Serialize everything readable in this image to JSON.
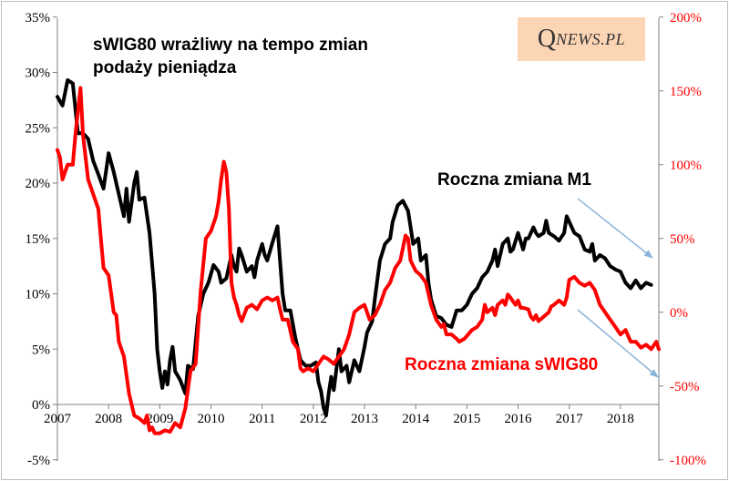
{
  "logo": {
    "initial": "Q",
    "rest": "NEWS.PL"
  },
  "chart_data": {
    "type": "line",
    "title": "sWIG80 wrażliwy na tempo zmian podaży pieniądza",
    "title_lines": [
      "sWIG80 wrażliwy na tempo zmian",
      "podaży pieniądza"
    ],
    "x_ticks": [
      "2007",
      "2008",
      "2009",
      "2010",
      "2011",
      "2012",
      "2013",
      "2014",
      "2015",
      "2016",
      "2017",
      "2018"
    ],
    "x_range": [
      2007.0,
      2018.75
    ],
    "y_left": {
      "range": [
        -5,
        35
      ],
      "ticks": [
        -5,
        0,
        5,
        10,
        15,
        20,
        25,
        30,
        35
      ],
      "tick_labels": [
        "-5%",
        "0%",
        "5%",
        "10%",
        "15%",
        "20%",
        "25%",
        "30%",
        "35%"
      ]
    },
    "y_right": {
      "range": [
        -100,
        200
      ],
      "ticks": [
        -100,
        -50,
        0,
        50,
        100,
        150,
        200
      ],
      "tick_labels": [
        "-100%",
        "-50%",
        "0%",
        "50%",
        "100%",
        "150%",
        "200%"
      ]
    },
    "grid": false,
    "colors": {
      "m1": "#000000",
      "swig": "#ff0000",
      "arrow": "#8ab4d9",
      "right_axis_text": "#ff0000"
    },
    "series": [
      {
        "name": "Roczna zmiana M1",
        "axis": "left",
        "color": "#000000",
        "points": [
          [
            2007.0,
            27.8
          ],
          [
            2007.1,
            27.0
          ],
          [
            2007.2,
            29.3
          ],
          [
            2007.3,
            29.0
          ],
          [
            2007.4,
            24.5
          ],
          [
            2007.5,
            24.5
          ],
          [
            2007.6,
            24.0
          ],
          [
            2007.7,
            22.0
          ],
          [
            2007.8,
            20.8
          ],
          [
            2007.9,
            19.5
          ],
          [
            2008.0,
            22.7
          ],
          [
            2008.1,
            21.0
          ],
          [
            2008.2,
            19.0
          ],
          [
            2008.3,
            17.0
          ],
          [
            2008.35,
            19.5
          ],
          [
            2008.4,
            16.5
          ],
          [
            2008.5,
            20.0
          ],
          [
            2008.55,
            21.0
          ],
          [
            2008.6,
            18.5
          ],
          [
            2008.7,
            18.7
          ],
          [
            2008.8,
            15.5
          ],
          [
            2008.9,
            10.0
          ],
          [
            2008.95,
            5.0
          ],
          [
            2009.0,
            3.0
          ],
          [
            2009.05,
            1.5
          ],
          [
            2009.1,
            3.0
          ],
          [
            2009.15,
            1.8
          ],
          [
            2009.2,
            4.0
          ],
          [
            2009.25,
            5.2
          ],
          [
            2009.3,
            3.0
          ],
          [
            2009.4,
            2.2
          ],
          [
            2009.5,
            1.0
          ],
          [
            2009.55,
            3.5
          ],
          [
            2009.65,
            3.2
          ],
          [
            2009.75,
            8.0
          ],
          [
            2009.85,
            10.0
          ],
          [
            2009.95,
            11.0
          ],
          [
            2010.05,
            12.6
          ],
          [
            2010.15,
            12.0
          ],
          [
            2010.2,
            11.0
          ],
          [
            2010.3,
            11.4
          ],
          [
            2010.4,
            13.5
          ],
          [
            2010.45,
            12.5
          ],
          [
            2010.5,
            12.0
          ],
          [
            2010.55,
            14.1
          ],
          [
            2010.6,
            13.5
          ],
          [
            2010.7,
            12.0
          ],
          [
            2010.8,
            12.5
          ],
          [
            2010.85,
            11.5
          ],
          [
            2010.9,
            13.0
          ],
          [
            2011.0,
            14.5
          ],
          [
            2011.05,
            13.5
          ],
          [
            2011.1,
            13.0
          ],
          [
            2011.2,
            14.6
          ],
          [
            2011.3,
            16.1
          ],
          [
            2011.35,
            13.0
          ],
          [
            2011.4,
            10.0
          ],
          [
            2011.45,
            8.5
          ],
          [
            2011.55,
            8.5
          ],
          [
            2011.65,
            6.0
          ],
          [
            2011.75,
            4.0
          ],
          [
            2011.85,
            3.5
          ],
          [
            2011.95,
            3.5
          ],
          [
            2012.05,
            3.8
          ],
          [
            2012.1,
            2.0
          ],
          [
            2012.15,
            1.2
          ],
          [
            2012.2,
            -0.3
          ],
          [
            2012.25,
            -1.0
          ],
          [
            2012.3,
            1.0
          ],
          [
            2012.35,
            2.5
          ],
          [
            2012.4,
            1.3
          ],
          [
            2012.5,
            5.0
          ],
          [
            2012.55,
            3.0
          ],
          [
            2012.65,
            3.5
          ],
          [
            2012.7,
            2.0
          ],
          [
            2012.8,
            4.0
          ],
          [
            2012.9,
            3.0
          ],
          [
            2013.0,
            5.2
          ],
          [
            2013.05,
            6.5
          ],
          [
            2013.15,
            7.5
          ],
          [
            2013.2,
            9.5
          ],
          [
            2013.3,
            13.0
          ],
          [
            2013.4,
            14.5
          ],
          [
            2013.5,
            15.0
          ],
          [
            2013.55,
            16.5
          ],
          [
            2013.65,
            18.0
          ],
          [
            2013.75,
            18.4
          ],
          [
            2013.85,
            17.5
          ],
          [
            2013.9,
            16.0
          ],
          [
            2013.95,
            14.5
          ],
          [
            2014.05,
            15.0
          ],
          [
            2014.1,
            13.0
          ],
          [
            2014.2,
            13.5
          ],
          [
            2014.25,
            11.0
          ],
          [
            2014.3,
            9.5
          ],
          [
            2014.4,
            8.0
          ],
          [
            2014.5,
            7.8
          ],
          [
            2014.55,
            7.5
          ],
          [
            2014.6,
            7.2
          ],
          [
            2014.7,
            7.0
          ],
          [
            2014.8,
            8.5
          ],
          [
            2014.9,
            8.5
          ],
          [
            2015.0,
            9.0
          ],
          [
            2015.1,
            10.0
          ],
          [
            2015.2,
            10.5
          ],
          [
            2015.3,
            11.5
          ],
          [
            2015.4,
            12.0
          ],
          [
            2015.5,
            13.0
          ],
          [
            2015.55,
            14.0
          ],
          [
            2015.6,
            12.5
          ],
          [
            2015.7,
            14.5
          ],
          [
            2015.8,
            15.0
          ],
          [
            2015.85,
            13.8
          ],
          [
            2015.9,
            14.0
          ],
          [
            2016.0,
            15.5
          ],
          [
            2016.1,
            14.0
          ],
          [
            2016.15,
            15.0
          ],
          [
            2016.2,
            15.0
          ],
          [
            2016.3,
            16.0
          ],
          [
            2016.35,
            15.5
          ],
          [
            2016.4,
            15.2
          ],
          [
            2016.5,
            15.5
          ],
          [
            2016.55,
            16.6
          ],
          [
            2016.6,
            15.5
          ],
          [
            2016.7,
            15.2
          ],
          [
            2016.8,
            14.8
          ],
          [
            2016.9,
            15.5
          ],
          [
            2016.95,
            17.0
          ],
          [
            2017.0,
            16.5
          ],
          [
            2017.1,
            15.5
          ],
          [
            2017.2,
            15.2
          ],
          [
            2017.3,
            14.0
          ],
          [
            2017.4,
            13.8
          ],
          [
            2017.45,
            14.5
          ],
          [
            2017.5,
            13.0
          ],
          [
            2017.6,
            13.5
          ],
          [
            2017.7,
            13.2
          ],
          [
            2017.8,
            12.5
          ],
          [
            2017.9,
            12.2
          ],
          [
            2018.0,
            12.0
          ],
          [
            2018.1,
            11.0
          ],
          [
            2018.2,
            10.5
          ],
          [
            2018.3,
            11.2
          ],
          [
            2018.4,
            10.5
          ],
          [
            2018.5,
            11.0
          ],
          [
            2018.6,
            10.8
          ]
        ]
      },
      {
        "name": "Roczna zmiana sWIG80",
        "axis": "right",
        "color": "#ff0000",
        "points": [
          [
            2007.0,
            110
          ],
          [
            2007.05,
            105
          ],
          [
            2007.1,
            90
          ],
          [
            2007.2,
            100
          ],
          [
            2007.3,
            100
          ],
          [
            2007.35,
            120
          ],
          [
            2007.45,
            152
          ],
          [
            2007.5,
            120
          ],
          [
            2007.6,
            90
          ],
          [
            2007.7,
            80
          ],
          [
            2007.8,
            70
          ],
          [
            2007.85,
            50
          ],
          [
            2007.9,
            30
          ],
          [
            2008.0,
            25
          ],
          [
            2008.1,
            0
          ],
          [
            2008.15,
            -2
          ],
          [
            2008.2,
            -20
          ],
          [
            2008.3,
            -30
          ],
          [
            2008.4,
            -55
          ],
          [
            2008.5,
            -70
          ],
          [
            2008.6,
            -72
          ],
          [
            2008.7,
            -75
          ],
          [
            2008.75,
            -70
          ],
          [
            2008.8,
            -80
          ],
          [
            2008.85,
            -78
          ],
          [
            2008.9,
            -82
          ],
          [
            2009.0,
            -82
          ],
          [
            2009.1,
            -80
          ],
          [
            2009.2,
            -81
          ],
          [
            2009.3,
            -75
          ],
          [
            2009.4,
            -78
          ],
          [
            2009.5,
            -65
          ],
          [
            2009.6,
            -40
          ],
          [
            2009.7,
            -35
          ],
          [
            2009.75,
            -10
          ],
          [
            2009.8,
            15
          ],
          [
            2009.9,
            50
          ],
          [
            2010.0,
            55
          ],
          [
            2010.1,
            65
          ],
          [
            2010.15,
            75
          ],
          [
            2010.2,
            90
          ],
          [
            2010.25,
            102
          ],
          [
            2010.3,
            95
          ],
          [
            2010.35,
            70
          ],
          [
            2010.4,
            20
          ],
          [
            2010.45,
            10
          ],
          [
            2010.5,
            5
          ],
          [
            2010.55,
            -2
          ],
          [
            2010.6,
            -6
          ],
          [
            2010.7,
            3
          ],
          [
            2010.8,
            5
          ],
          [
            2010.9,
            2
          ],
          [
            2011.0,
            8
          ],
          [
            2011.1,
            10
          ],
          [
            2011.2,
            8
          ],
          [
            2011.3,
            10
          ],
          [
            2011.35,
            2
          ],
          [
            2011.4,
            -5
          ],
          [
            2011.5,
            -5
          ],
          [
            2011.6,
            -20
          ],
          [
            2011.7,
            -25
          ],
          [
            2011.75,
            -38
          ],
          [
            2011.8,
            -40
          ],
          [
            2011.9,
            -38
          ],
          [
            2012.0,
            -40
          ],
          [
            2012.1,
            -35
          ],
          [
            2012.2,
            -30
          ],
          [
            2012.3,
            -32
          ],
          [
            2012.4,
            -35
          ],
          [
            2012.5,
            -30
          ],
          [
            2012.6,
            -25
          ],
          [
            2012.7,
            -15
          ],
          [
            2012.8,
            0
          ],
          [
            2012.9,
            3
          ],
          [
            2013.0,
            5
          ],
          [
            2013.05,
            0
          ],
          [
            2013.1,
            -5
          ],
          [
            2013.2,
            -2
          ],
          [
            2013.3,
            5
          ],
          [
            2013.4,
            15
          ],
          [
            2013.5,
            20
          ],
          [
            2013.6,
            30
          ],
          [
            2013.7,
            35
          ],
          [
            2013.8,
            52
          ],
          [
            2013.85,
            50
          ],
          [
            2013.9,
            35
          ],
          [
            2014.0,
            28
          ],
          [
            2014.1,
            25
          ],
          [
            2014.2,
            20
          ],
          [
            2014.3,
            5
          ],
          [
            2014.4,
            -5
          ],
          [
            2014.5,
            -10
          ],
          [
            2014.55,
            -8
          ],
          [
            2014.6,
            -15
          ],
          [
            2014.7,
            -15
          ],
          [
            2014.8,
            -18
          ],
          [
            2014.85,
            -20
          ],
          [
            2014.95,
            -18
          ],
          [
            2015.1,
            -12
          ],
          [
            2015.2,
            -10
          ],
          [
            2015.3,
            -5
          ],
          [
            2015.35,
            5
          ],
          [
            2015.4,
            0
          ],
          [
            2015.5,
            3
          ],
          [
            2015.55,
            -2
          ],
          [
            2015.6,
            5
          ],
          [
            2015.7,
            8
          ],
          [
            2015.75,
            5
          ],
          [
            2015.8,
            12
          ],
          [
            2015.85,
            10
          ],
          [
            2015.95,
            5
          ],
          [
            2016.0,
            8
          ],
          [
            2016.05,
            3
          ],
          [
            2016.1,
            3
          ],
          [
            2016.2,
            2
          ],
          [
            2016.25,
            -3
          ],
          [
            2016.3,
            -5
          ],
          [
            2016.35,
            -2
          ],
          [
            2016.4,
            -6
          ],
          [
            2016.5,
            -3
          ],
          [
            2016.6,
            0
          ],
          [
            2016.65,
            4
          ],
          [
            2016.7,
            5
          ],
          [
            2016.8,
            8
          ],
          [
            2016.9,
            5
          ],
          [
            2016.95,
            10
          ],
          [
            2017.0,
            22
          ],
          [
            2017.1,
            24
          ],
          [
            2017.2,
            20
          ],
          [
            2017.3,
            18
          ],
          [
            2017.4,
            20
          ],
          [
            2017.5,
            15
          ],
          [
            2017.6,
            5
          ],
          [
            2017.7,
            0
          ],
          [
            2017.8,
            -5
          ],
          [
            2017.9,
            -10
          ],
          [
            2018.0,
            -15
          ],
          [
            2018.1,
            -12
          ],
          [
            2018.2,
            -20
          ],
          [
            2018.3,
            -20
          ],
          [
            2018.4,
            -24
          ],
          [
            2018.5,
            -22
          ],
          [
            2018.6,
            -25
          ],
          [
            2018.7,
            -20
          ],
          [
            2018.75,
            -25
          ]
        ]
      }
    ],
    "annotations": [
      {
        "text": "Roczna zmiana M1",
        "color": "#000000"
      },
      {
        "text": "Roczna zmiana sWIG80",
        "color": "#ff0000"
      }
    ]
  }
}
